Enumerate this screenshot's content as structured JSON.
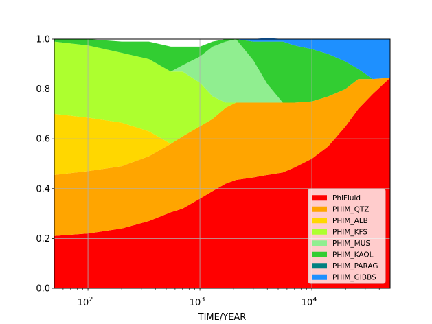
{
  "chart_data": {
    "type": "area",
    "stacked": true,
    "xscale": "log",
    "xlim": [
      50,
      50000
    ],
    "ylim": [
      0,
      1
    ],
    "xlabel": "TIME/YEAR",
    "ylabel": "",
    "title": "",
    "grid": true,
    "legend_position": "lower-right",
    "x": [
      50,
      100,
      200,
      350,
      550,
      700,
      1000,
      1300,
      1700,
      2100,
      3000,
      4000,
      5500,
      7000,
      10000,
      14000,
      20000,
      26000,
      35000,
      50000
    ],
    "yticks": [
      0.0,
      0.2,
      0.4,
      0.6,
      0.8,
      1.0
    ],
    "ytick_labels": [
      "0.0",
      "0.2",
      "0.4",
      "0.6",
      "0.8",
      "1.0"
    ],
    "xticks": [
      100,
      1000,
      10000
    ],
    "xtick_labels": [
      {
        "base": "10",
        "exp": "2"
      },
      {
        "base": "10",
        "exp": "3"
      },
      {
        "base": "10",
        "exp": "4"
      }
    ],
    "series": [
      {
        "name": "PhiFluid",
        "color": "#ff0000",
        "values": [
          0.21,
          0.22,
          0.24,
          0.27,
          0.305,
          0.32,
          0.36,
          0.39,
          0.42,
          0.435,
          0.445,
          0.455,
          0.465,
          0.485,
          0.52,
          0.57,
          0.65,
          0.72,
          0.78,
          0.845
        ]
      },
      {
        "name": "PHIM_QTZ",
        "color": "#ffa500",
        "values": [
          0.245,
          0.25,
          0.25,
          0.26,
          0.275,
          0.29,
          0.29,
          0.29,
          0.305,
          0.31,
          0.3,
          0.29,
          0.28,
          0.26,
          0.23,
          0.2,
          0.15,
          0.12,
          0.06,
          0.0
        ]
      },
      {
        "name": "PHIM_ALB",
        "color": "#ffd700",
        "values": [
          0.245,
          0.215,
          0.175,
          0.1,
          0.0,
          0.0,
          0.0,
          0.0,
          0.0,
          0.0,
          0.0,
          0.0,
          0.0,
          0.0,
          0.0,
          0.0,
          0.0,
          0.0,
          0.0,
          0.0
        ]
      },
      {
        "name": "PHIM_KFS",
        "color": "#adff2f",
        "values": [
          0.29,
          0.29,
          0.28,
          0.29,
          0.29,
          0.26,
          0.175,
          0.09,
          0.02,
          0.0,
          0.0,
          0.0,
          0.0,
          0.0,
          0.0,
          0.0,
          0.0,
          0.0,
          0.0,
          0.0
        ]
      },
      {
        "name": "PHIM_MUS",
        "color": "#90ee90",
        "values": [
          0.0,
          0.0,
          0.0,
          0.0,
          0.0,
          0.025,
          0.105,
          0.2,
          0.245,
          0.255,
          0.17,
          0.075,
          0.0,
          0.0,
          0.0,
          0.0,
          0.0,
          0.0,
          0.0,
          0.0
        ]
      },
      {
        "name": "PHIM_KAOL",
        "color": "#32cd32",
        "values": [
          0.01,
          0.025,
          0.045,
          0.07,
          0.1,
          0.075,
          0.04,
          0.02,
          0.01,
          0.0,
          0.075,
          0.17,
          0.245,
          0.23,
          0.21,
          0.17,
          0.11,
          0.04,
          0.0,
          0.0
        ]
      },
      {
        "name": "PHIM_PARAG",
        "color": "#008080",
        "values": [
          0.0,
          0.0,
          0.0,
          0.0,
          0.0,
          0.0,
          0.0,
          0.0,
          0.0,
          0.0,
          0.0,
          0.0,
          0.0,
          0.0,
          0.0,
          0.0,
          0.0,
          0.0,
          0.0,
          0.0
        ]
      },
      {
        "name": "PHIM_GIBBS",
        "color": "#1e90ff",
        "values": [
          0.0,
          0.0,
          0.0,
          0.0,
          0.0,
          0.0,
          0.0,
          0.0,
          0.0,
          0.0,
          0.01,
          0.015,
          0.01,
          0.025,
          0.04,
          0.06,
          0.09,
          0.12,
          0.16,
          0.155
        ]
      }
    ]
  }
}
